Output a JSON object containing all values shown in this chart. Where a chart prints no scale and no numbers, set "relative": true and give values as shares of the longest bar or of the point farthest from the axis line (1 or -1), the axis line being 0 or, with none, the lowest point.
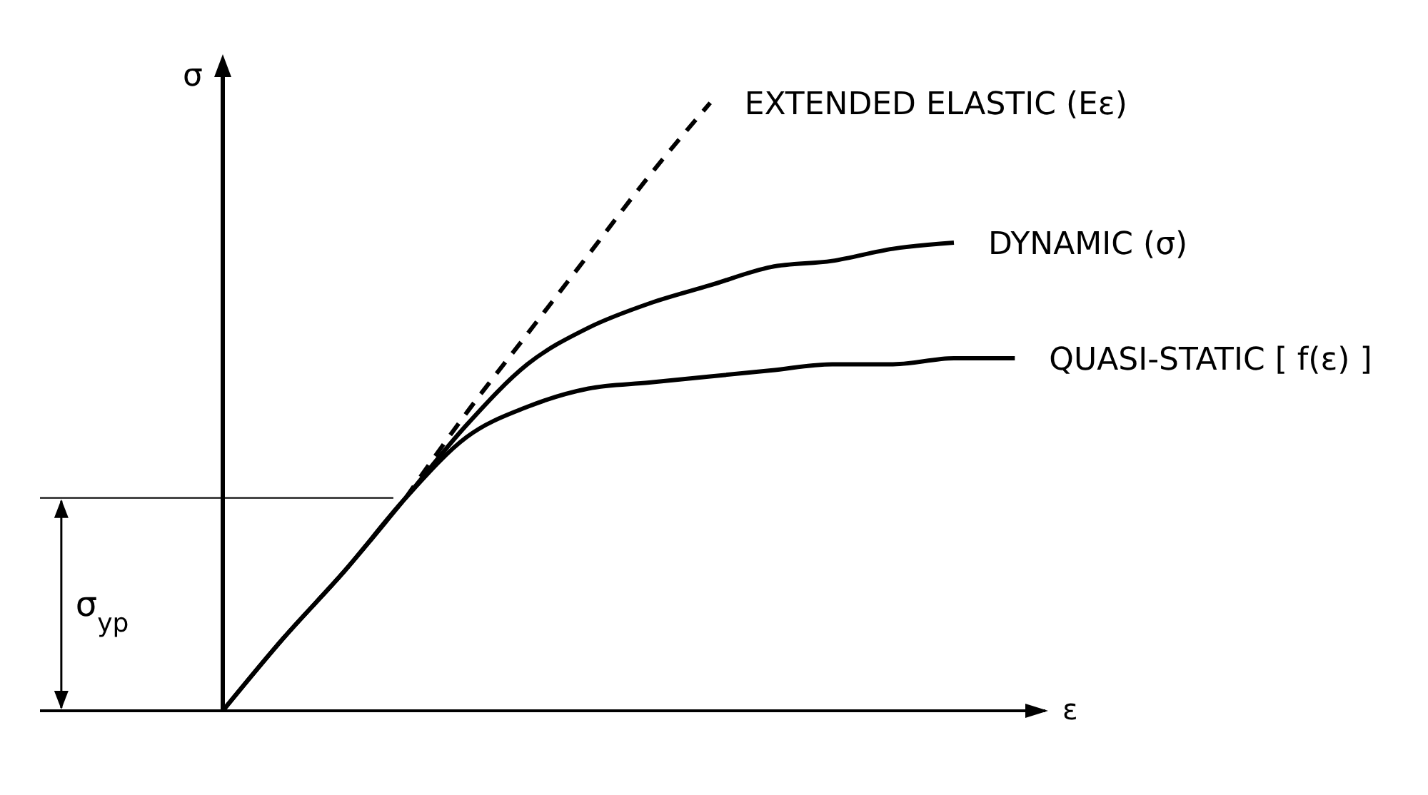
{
  "chart_data": {
    "type": "line",
    "relative": true,
    "xlabel": "ε",
    "ylabel": "σ",
    "categories": [
      null,
      null,
      null,
      null,
      null,
      null,
      null,
      null,
      null,
      null,
      null,
      null,
      null,
      null
    ],
    "series": [
      {
        "name": "EXTENDED ELASTIC (Eε)",
        "color": "#000000",
        "line_style": "dashed",
        "values": [
          null,
          null,
          null,
          0.35,
          0.49,
          0.62,
          0.75,
          0.88,
          1.0,
          null,
          null,
          null,
          null,
          null
        ]
      },
      {
        "name": "DYNAMIC (σ)",
        "color": "#000000",
        "values": [
          0,
          0.12,
          0.23,
          0.35,
          0.47,
          0.57,
          0.63,
          0.67,
          0.7,
          0.73,
          0.74,
          0.76,
          0.77,
          null
        ]
      },
      {
        "name": "QUASI-STATIC [ f(ε) ]",
        "color": "#000000",
        "values": [
          0,
          0.12,
          0.23,
          0.35,
          0.45,
          0.5,
          0.53,
          0.54,
          0.55,
          0.56,
          0.57,
          0.57,
          0.58,
          0.58
        ]
      }
    ],
    "ref_lines": [
      {
        "axis": "y",
        "value": 0.35,
        "label": "σ$_{yp}$",
        "color": "#000000"
      }
    ],
    "marker": "none",
    "line_style": "solid"
  }
}
